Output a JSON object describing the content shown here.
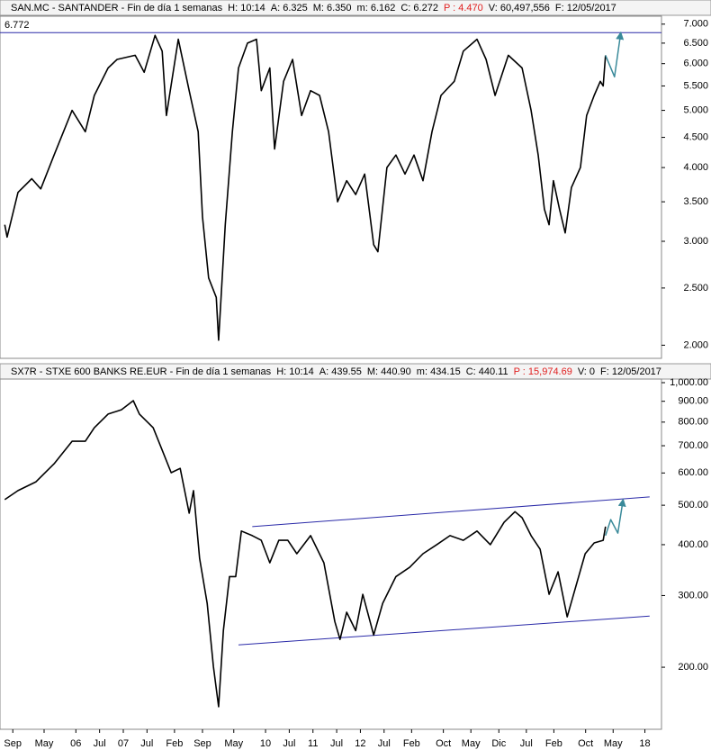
{
  "chart_data": [
    {
      "type": "line",
      "title": "SAN.MC - SANTANDER - Fin de día 1 semanas",
      "stats": [
        {
          "text": "H: 10:14",
          "color": "#000000"
        },
        {
          "text": "A: 6.325",
          "color": "#000000"
        },
        {
          "text": "M: 6.350",
          "color": "#000000"
        },
        {
          "text": "m: 6.162",
          "color": "#000000"
        },
        {
          "text": "C: 6.272",
          "color": "#000000"
        },
        {
          "text": "P : 4.470",
          "color": "#e02020"
        },
        {
          "text": "V: 60,497,556",
          "color": "#000000"
        },
        {
          "text": "F: 12/05/2017",
          "color": "#000000"
        }
      ],
      "log_scale": true,
      "xlim": [
        2004.4,
        2018.35
      ],
      "ylim": [
        1.9,
        7.22
      ],
      "yticks": [
        {
          "value": 2,
          "label": "2.000"
        },
        {
          "value": 2.5,
          "label": "2.500"
        },
        {
          "value": 3,
          "label": "3.000"
        },
        {
          "value": 3.5,
          "label": "3.500"
        },
        {
          "value": 4,
          "label": "4.000"
        },
        {
          "value": 4.5,
          "label": "4.500"
        },
        {
          "value": 5,
          "label": "5.000"
        },
        {
          "value": 5.5,
          "label": "5.500"
        },
        {
          "value": 6,
          "label": "6.000"
        },
        {
          "value": 6.5,
          "label": "6.500"
        },
        {
          "value": 7,
          "label": "7.000"
        }
      ],
      "series": [
        {
          "color": "#000000",
          "x": [
            2004.5,
            2004.55,
            2004.78,
            2005.07,
            2005.26,
            2005.54,
            2005.92,
            2006.2,
            2006.39,
            2006.68,
            2006.87,
            2007.25,
            2007.44,
            2007.67,
            2007.82,
            2007.91,
            2008.16,
            2008.39,
            2008.58,
            2008.67,
            2008.8,
            2008.96,
            2009.01,
            2009.15,
            2009.3,
            2009.43,
            2009.62,
            2009.81,
            2009.91,
            2010.09,
            2010.19,
            2010.38,
            2010.57,
            2010.76,
            2010.95,
            2011.14,
            2011.33,
            2011.52,
            2011.71,
            2011.9,
            2012.09,
            2012.28,
            2012.37,
            2012.56,
            2012.75,
            2012.94,
            2013.13,
            2013.32,
            2013.51,
            2013.7,
            2013.98,
            2014.17,
            2014.46,
            2014.65,
            2014.84,
            2015.12,
            2015.41,
            2015.6,
            2015.75,
            2015.88,
            2015.98,
            2016.07,
            2016.2,
            2016.32,
            2016.45,
            2016.64,
            2016.77,
            2016.93,
            2017.06,
            2017.12,
            2017.17
          ],
          "values": [
            3.2,
            3.05,
            3.63,
            3.83,
            3.68,
            4.2,
            5.0,
            4.6,
            5.3,
            5.9,
            6.1,
            6.2,
            5.8,
            6.7,
            6.3,
            4.9,
            6.6,
            5.4,
            4.6,
            3.3,
            2.6,
            2.41,
            2.04,
            3.2,
            4.6,
            5.9,
            6.5,
            6.6,
            5.4,
            5.9,
            4.3,
            5.6,
            6.1,
            4.9,
            5.4,
            5.3,
            4.6,
            3.5,
            3.8,
            3.6,
            3.9,
            2.96,
            2.88,
            4.0,
            4.2,
            3.9,
            4.2,
            3.8,
            4.6,
            5.3,
            5.6,
            6.3,
            6.6,
            6.1,
            5.3,
            6.2,
            5.9,
            5.0,
            4.2,
            3.4,
            3.2,
            3.8,
            3.4,
            3.1,
            3.7,
            4.0,
            4.9,
            5.3,
            5.6,
            5.5,
            6.2
          ]
        },
        {
          "color": "#3a8a9a",
          "arrow": true,
          "x": [
            2017.17,
            2017.36,
            2017.49
          ],
          "values": [
            6.2,
            5.7,
            6.76
          ]
        }
      ],
      "hlines": [
        {
          "value": 6.772,
          "color": "#2a2aa8"
        }
      ]
    },
    {
      "type": "line",
      "title": "SX7R - STXE 600 BANKS RE.EUR - Fin de día 1 semanas",
      "stats": [
        {
          "text": "H: 10:14",
          "color": "#000000"
        },
        {
          "text": "A: 439.55",
          "color": "#000000"
        },
        {
          "text": "M: 440.90",
          "color": "#000000"
        },
        {
          "text": "m: 434.15",
          "color": "#000000"
        },
        {
          "text": "C: 440.11",
          "color": "#000000"
        },
        {
          "text": "P : 15,974.69",
          "color": "#e02020"
        },
        {
          "text": "V: 0",
          "color": "#000000"
        },
        {
          "text": "F: 12/05/2017",
          "color": "#000000"
        }
      ],
      "log_scale": true,
      "xlim": [
        2004.4,
        2018.35
      ],
      "ylim": [
        140.8,
        1020.6
      ],
      "yticks": [
        {
          "value": 200,
          "label": "200.00"
        },
        {
          "value": 300,
          "label": "300.00"
        },
        {
          "value": 400,
          "label": "400.00"
        },
        {
          "value": 500,
          "label": "500.00"
        },
        {
          "value": 600,
          "label": "600.00"
        },
        {
          "value": 700,
          "label": "700.00"
        },
        {
          "value": 800,
          "label": "800.00"
        },
        {
          "value": 900,
          "label": "900.00"
        },
        {
          "value": 1000,
          "label": "1,000.00"
        }
      ],
      "xticks": [
        {
          "value": 2004.67,
          "label": "Sep"
        },
        {
          "value": 2005.33,
          "label": "May"
        },
        {
          "value": 2006,
          "label": "06"
        },
        {
          "value": 2006.5,
          "label": "Jul"
        },
        {
          "value": 2007,
          "label": "07"
        },
        {
          "value": 2007.5,
          "label": "Jul"
        },
        {
          "value": 2008.08,
          "label": "Feb"
        },
        {
          "value": 2008.67,
          "label": "Sep"
        },
        {
          "value": 2009.33,
          "label": "May"
        },
        {
          "value": 2010,
          "label": "10"
        },
        {
          "value": 2010.5,
          "label": "Jul"
        },
        {
          "value": 2011,
          "label": "11"
        },
        {
          "value": 2011.5,
          "label": "Jul"
        },
        {
          "value": 2012,
          "label": "12"
        },
        {
          "value": 2012.5,
          "label": "Jul"
        },
        {
          "value": 2013.08,
          "label": "Feb"
        },
        {
          "value": 2013.75,
          "label": "Oct"
        },
        {
          "value": 2014.33,
          "label": "May"
        },
        {
          "value": 2014.92,
          "label": "Dic"
        },
        {
          "value": 2015.5,
          "label": "Jul"
        },
        {
          "value": 2016.08,
          "label": "Feb"
        },
        {
          "value": 2016.75,
          "label": "Oct"
        },
        {
          "value": 2017.33,
          "label": "May"
        },
        {
          "value": 2018,
          "label": "18"
        }
      ],
      "series": [
        {
          "color": "#000000",
          "x": [
            2004.5,
            2004.78,
            2005.16,
            2005.54,
            2005.92,
            2006.2,
            2006.39,
            2006.68,
            2006.96,
            2007.21,
            2007.34,
            2007.63,
            2007.82,
            2008.01,
            2008.2,
            2008.39,
            2008.48,
            2008.61,
            2008.77,
            2008.9,
            2009.01,
            2009.11,
            2009.24,
            2009.37,
            2009.49,
            2009.72,
            2009.91,
            2010.09,
            2010.28,
            2010.47,
            2010.66,
            2010.95,
            2011.23,
            2011.46,
            2011.57,
            2011.71,
            2011.9,
            2012.05,
            2012.28,
            2012.47,
            2012.75,
            2013.04,
            2013.32,
            2013.61,
            2013.89,
            2014.17,
            2014.46,
            2014.74,
            2015.03,
            2015.26,
            2015.41,
            2015.6,
            2015.79,
            2015.98,
            2016.17,
            2016.36,
            2016.55,
            2016.74,
            2016.93,
            2017.12,
            2017.17
          ],
          "values": [
            516,
            543,
            571,
            632,
            718,
            718,
            775,
            837,
            858,
            903,
            837,
            775,
            683,
            601,
            616,
            478,
            543,
            370,
            287,
            201,
            160,
            246,
            334,
            334,
            432,
            421,
            410,
            361,
            410,
            410,
            380,
            421,
            361,
            259,
            234,
            273,
            246,
            302,
            240,
            287,
            334,
            352,
            380,
            400,
            421,
            410,
            432,
            400,
            454,
            482,
            466,
            421,
            390,
            302,
            343,
            266,
            318,
            380,
            404,
            410,
            443
          ]
        },
        {
          "color": "#3a8a9a",
          "arrow": true,
          "x": [
            2017.17,
            2017.28,
            2017.43,
            2017.54
          ],
          "values": [
            421,
            461,
            427,
            515
          ]
        }
      ],
      "trendlines": [
        {
          "color": "#2a2aa8",
          "x": [
            2009.72,
            2018.1
          ],
          "values": [
            443,
            524
          ]
        },
        {
          "color": "#2a2aa8",
          "x": [
            2009.43,
            2018.1
          ],
          "values": [
            227,
            267
          ]
        }
      ]
    }
  ]
}
